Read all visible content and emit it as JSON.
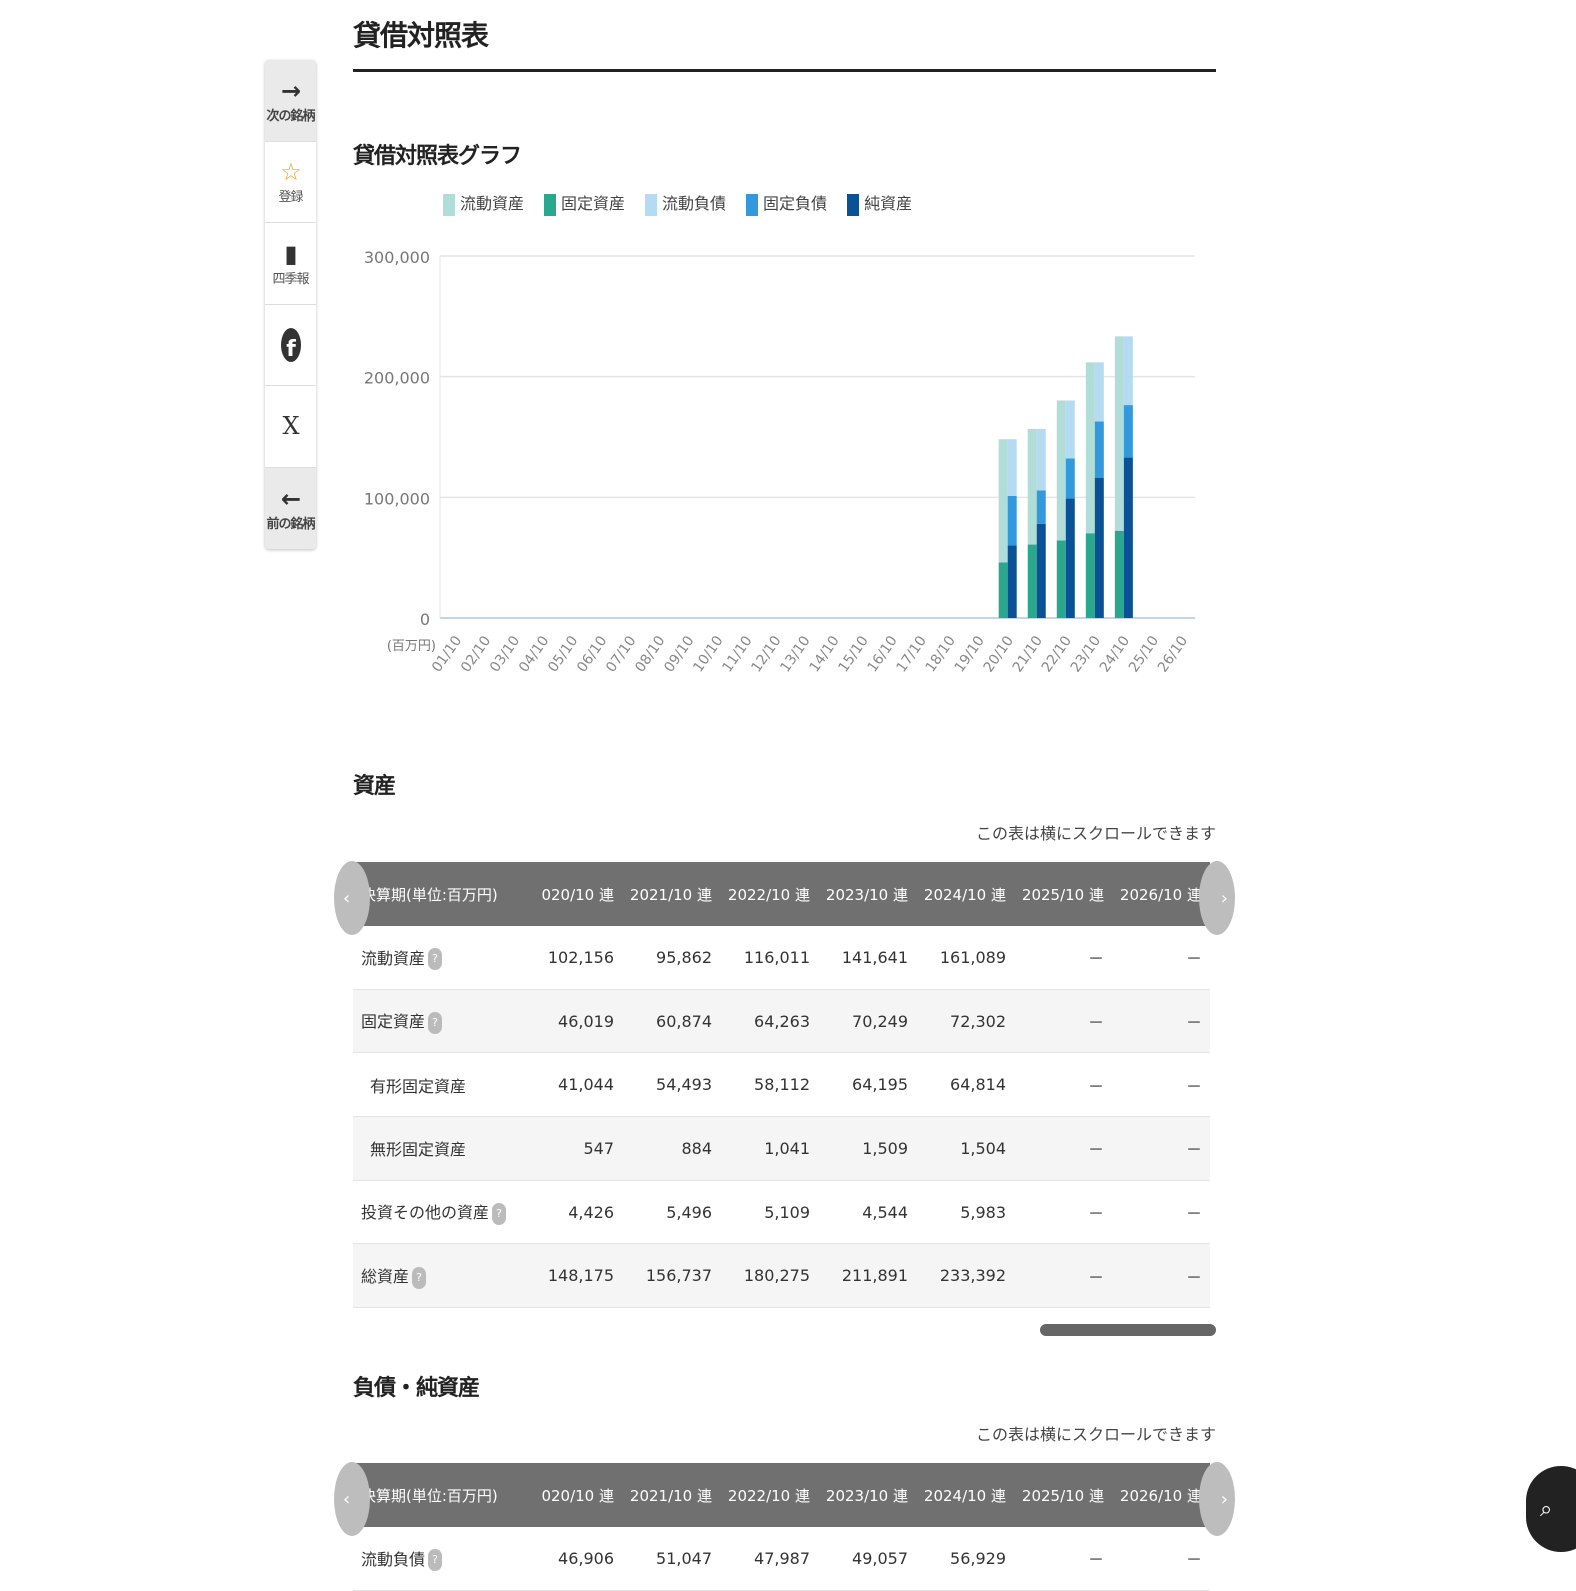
{
  "page": {
    "title": "貸借対照表"
  },
  "sidebar": {
    "items": [
      {
        "icon": "arrow-right-icon",
        "label": "次の銘柄"
      },
      {
        "icon": "star-plus-icon",
        "label": "登録"
      },
      {
        "icon": "book-icon",
        "label": "四季報"
      },
      {
        "icon": "facebook-icon",
        "label": ""
      },
      {
        "icon": "x-icon",
        "label": ""
      },
      {
        "icon": "arrow-left-icon",
        "label": "前の銘柄"
      }
    ]
  },
  "chart_section": {
    "title": "貸借対照表グラフ"
  },
  "chart_data": {
    "type": "bar",
    "stacked": true,
    "unit_label": "(百万円)",
    "categories": [
      "01/10",
      "02/10",
      "03/10",
      "04/10",
      "05/10",
      "06/10",
      "07/10",
      "08/10",
      "09/10",
      "10/10",
      "11/10",
      "12/10",
      "13/10",
      "14/10",
      "15/10",
      "16/10",
      "17/10",
      "18/10",
      "19/10",
      "20/10",
      "21/10",
      "22/10",
      "23/10",
      "24/10",
      "25/10",
      "26/10"
    ],
    "ylim": [
      0,
      300000
    ],
    "yticks": [
      "0",
      "100,000",
      "200,000",
      "300,000"
    ],
    "grid": true,
    "legend": "top",
    "series": [
      {
        "name": "流動資産",
        "stack": "assets",
        "color": "#b0ddd8",
        "values": [
          null,
          null,
          null,
          null,
          null,
          null,
          null,
          null,
          null,
          null,
          null,
          null,
          null,
          null,
          null,
          null,
          null,
          null,
          null,
          102156,
          95862,
          116011,
          141641,
          161089,
          null,
          null
        ]
      },
      {
        "name": "固定資産",
        "stack": "assets",
        "color": "#2aa88e",
        "values": [
          null,
          null,
          null,
          null,
          null,
          null,
          null,
          null,
          null,
          null,
          null,
          null,
          null,
          null,
          null,
          null,
          null,
          null,
          null,
          46019,
          60874,
          64263,
          70249,
          72302,
          null,
          null
        ]
      },
      {
        "name": "流動負債",
        "stack": "liab",
        "color": "#b5dbf2",
        "values": [
          null,
          null,
          null,
          null,
          null,
          null,
          null,
          null,
          null,
          null,
          null,
          null,
          null,
          null,
          null,
          null,
          null,
          null,
          null,
          46906,
          51047,
          47987,
          49057,
          56929,
          null,
          null
        ]
      },
      {
        "name": "固定負債",
        "stack": "liab",
        "color": "#3399dd",
        "values": [
          null,
          null,
          null,
          null,
          null,
          null,
          null,
          null,
          null,
          null,
          null,
          null,
          null,
          null,
          null,
          null,
          null,
          null,
          null,
          41000,
          27700,
          33300,
          46800,
          43500,
          null,
          null
        ]
      },
      {
        "name": "純資産",
        "stack": "liab",
        "color": "#0a5296",
        "values": [
          null,
          null,
          null,
          null,
          null,
          null,
          null,
          null,
          null,
          null,
          null,
          null,
          null,
          null,
          null,
          null,
          null,
          null,
          null,
          60269,
          77990,
          98988,
          116034,
          132963,
          null,
          null
        ]
      }
    ]
  },
  "assets": {
    "title": "資産",
    "note": "この表は横にスクロールできます",
    "header": [
      "決算期(単位:百万円)",
      "020/10 連",
      "2021/10 連",
      "2022/10 連",
      "2023/10 連",
      "2024/10 連",
      "2025/10 連",
      "2026/10 連"
    ],
    "rows": [
      {
        "label": "流動資産",
        "help": true,
        "sub": false,
        "values": [
          "102,156",
          "95,862",
          "116,011",
          "141,641",
          "161,089",
          "－",
          "－"
        ]
      },
      {
        "label": "固定資産",
        "help": true,
        "sub": false,
        "values": [
          "46,019",
          "60,874",
          "64,263",
          "70,249",
          "72,302",
          "－",
          "－"
        ]
      },
      {
        "label": "有形固定資産",
        "help": false,
        "sub": true,
        "values": [
          "41,044",
          "54,493",
          "58,112",
          "64,195",
          "64,814",
          "－",
          "－"
        ]
      },
      {
        "label": "無形固定資産",
        "help": false,
        "sub": true,
        "values": [
          "547",
          "884",
          "1,041",
          "1,509",
          "1,504",
          "－",
          "－"
        ]
      },
      {
        "label": "投資その他の資産",
        "help": true,
        "sub": false,
        "values": [
          "4,426",
          "5,496",
          "5,109",
          "4,544",
          "5,983",
          "－",
          "－"
        ]
      },
      {
        "label": "総資産",
        "help": true,
        "sub": false,
        "values": [
          "148,175",
          "156,737",
          "180,275",
          "211,891",
          "233,392",
          "－",
          "－"
        ]
      }
    ]
  },
  "liabilities": {
    "title": "負債・純資産",
    "note": "この表は横にスクロールできます",
    "header": [
      "決算期(単位:百万円)",
      "020/10 連",
      "2021/10 連",
      "2022/10 連",
      "2023/10 連",
      "2024/10 連",
      "2025/10 連",
      "2026/10 連"
    ],
    "rows": [
      {
        "label": "流動負債",
        "help": true,
        "sub": false,
        "values": [
          "46,906",
          "51,047",
          "47,987",
          "49,057",
          "56,929",
          "－",
          "－"
        ]
      }
    ]
  },
  "help_glyph": "?",
  "arrows": {
    "left": "‹",
    "right": "›"
  }
}
